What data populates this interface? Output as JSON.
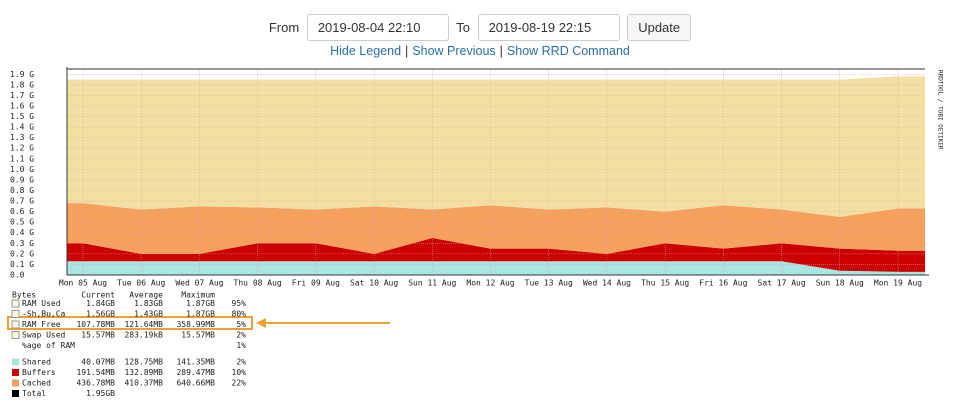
{
  "form": {
    "from_label": "From",
    "from_value": "2019-08-04 22:10",
    "to_label": "To",
    "to_value": "2019-08-19 22:15",
    "button": "Update"
  },
  "links": [
    "Hide Legend",
    "Show Previous",
    "Show RRD Command"
  ],
  "chart_data": {
    "type": "area",
    "stacked": true,
    "watermark": "RRDTOOL / TOBI OETIKER",
    "categories": [
      "Mon 05 Aug",
      "Tue 06 Aug",
      "Wed 07 Aug",
      "Thu 08 Aug",
      "Fri 09 Aug",
      "Sat 10 Aug",
      "Sun 11 Aug",
      "Mon 12 Aug",
      "Tue 13 Aug",
      "Wed 14 Aug",
      "Thu 15 Aug",
      "Fri 16 Aug",
      "Sat 17 Aug",
      "Sun 18 Aug",
      "Mon 19 Aug"
    ],
    "series": [
      {
        "name": "Shared",
        "color": "#a9e6e2",
        "values": [
          0.13,
          0.13,
          0.13,
          0.13,
          0.13,
          0.13,
          0.13,
          0.13,
          0.13,
          0.13,
          0.13,
          0.13,
          0.13,
          0.04,
          0.03
        ]
      },
      {
        "name": "Buffers",
        "color": "#cc0000",
        "values": [
          0.17,
          0.07,
          0.07,
          0.17,
          0.17,
          0.07,
          0.22,
          0.12,
          0.12,
          0.07,
          0.17,
          0.12,
          0.17,
          0.21,
          0.2
        ]
      },
      {
        "name": "Cached",
        "color": "#f6a05e",
        "values": [
          0.38,
          0.42,
          0.45,
          0.34,
          0.32,
          0.45,
          0.27,
          0.41,
          0.37,
          0.44,
          0.3,
          0.41,
          0.32,
          0.3,
          0.4
        ]
      },
      {
        "name": "RAM Used",
        "color": "#f2e0a2",
        "values": [
          1.17,
          1.23,
          1.2,
          1.21,
          1.23,
          1.2,
          1.23,
          1.19,
          1.23,
          1.21,
          1.25,
          1.19,
          1.23,
          1.3,
          1.25
        ]
      }
    ],
    "ylim": [
      0,
      1.95
    ],
    "yticks": [
      {
        "value": 0,
        "label": "0.0"
      },
      {
        "value": 0.1,
        "label": "0.1 G"
      },
      {
        "value": 0.2,
        "label": "0.2 G"
      },
      {
        "value": 0.3,
        "label": "0.3 G"
      },
      {
        "value": 0.4,
        "label": "0.4 G"
      },
      {
        "value": 0.5,
        "label": "0.5 G"
      },
      {
        "value": 0.6,
        "label": "0.6 G"
      },
      {
        "value": 0.7,
        "label": "0.7 G"
      },
      {
        "value": 0.8,
        "label": "0.8 G"
      },
      {
        "value": 0.9,
        "label": "0.9 G"
      },
      {
        "value": 1,
        "label": "1.0 G"
      },
      {
        "value": 1.1,
        "label": "1.1 G"
      },
      {
        "value": 1.2,
        "label": "1.2 G"
      },
      {
        "value": 1.3,
        "label": "1.3 G"
      },
      {
        "value": 1.4,
        "label": "1.4 G"
      },
      {
        "value": 1.5,
        "label": "1.5 G"
      },
      {
        "value": 1.6,
        "label": "1.6 G"
      },
      {
        "value": 1.7,
        "label": "1.7 G"
      },
      {
        "value": 1.8,
        "label": "1.8 G"
      },
      {
        "value": 1.9,
        "label": "1.9 G"
      }
    ],
    "grid": true
  },
  "stats": {
    "header": [
      "Bytes",
      "Current",
      "Average",
      "Maximum"
    ],
    "rows": [
      {
        "current": "1.84GB",
        "average": "1.83GB",
        "maximum": "1.87GB",
        "pct": "95%"
      },
      {
        "label": "-Sh,Bu,Ca",
        "current": "1.56GB",
        "average": "1.43GB",
        "maximum": "1.87GB",
        "pct": "80%"
      },
      {
        "label": "RAM Free",
        "current": "107.78MB",
        "average": "121.64MB",
        "maximum": "358.99MB",
        "pct": "5%"
      },
      {
        "label": "Swap Used",
        "current": "15.57MB",
        "average": "283.19kB",
        "maximum": "15.57MB",
        "pct": "2%"
      },
      {
        "label": "%age of RAM",
        "pct": "1%"
      }
    ],
    "series_rows": [
      {
        "current": "40.07MB",
        "average": "128.75MB",
        "maximum": "141.35MB",
        "pct": "2%"
      },
      {
        "current": "191.54MB",
        "average": "132.89MB",
        "maximum": "289.47MB",
        "pct": "10%"
      },
      {
        "current": "436.78MB",
        "average": "410.37MB",
        "maximum": "640.66MB",
        "pct": "22%"
      }
    ],
    "total": {
      "label": "Total",
      "current": "1.95GB"
    }
  }
}
